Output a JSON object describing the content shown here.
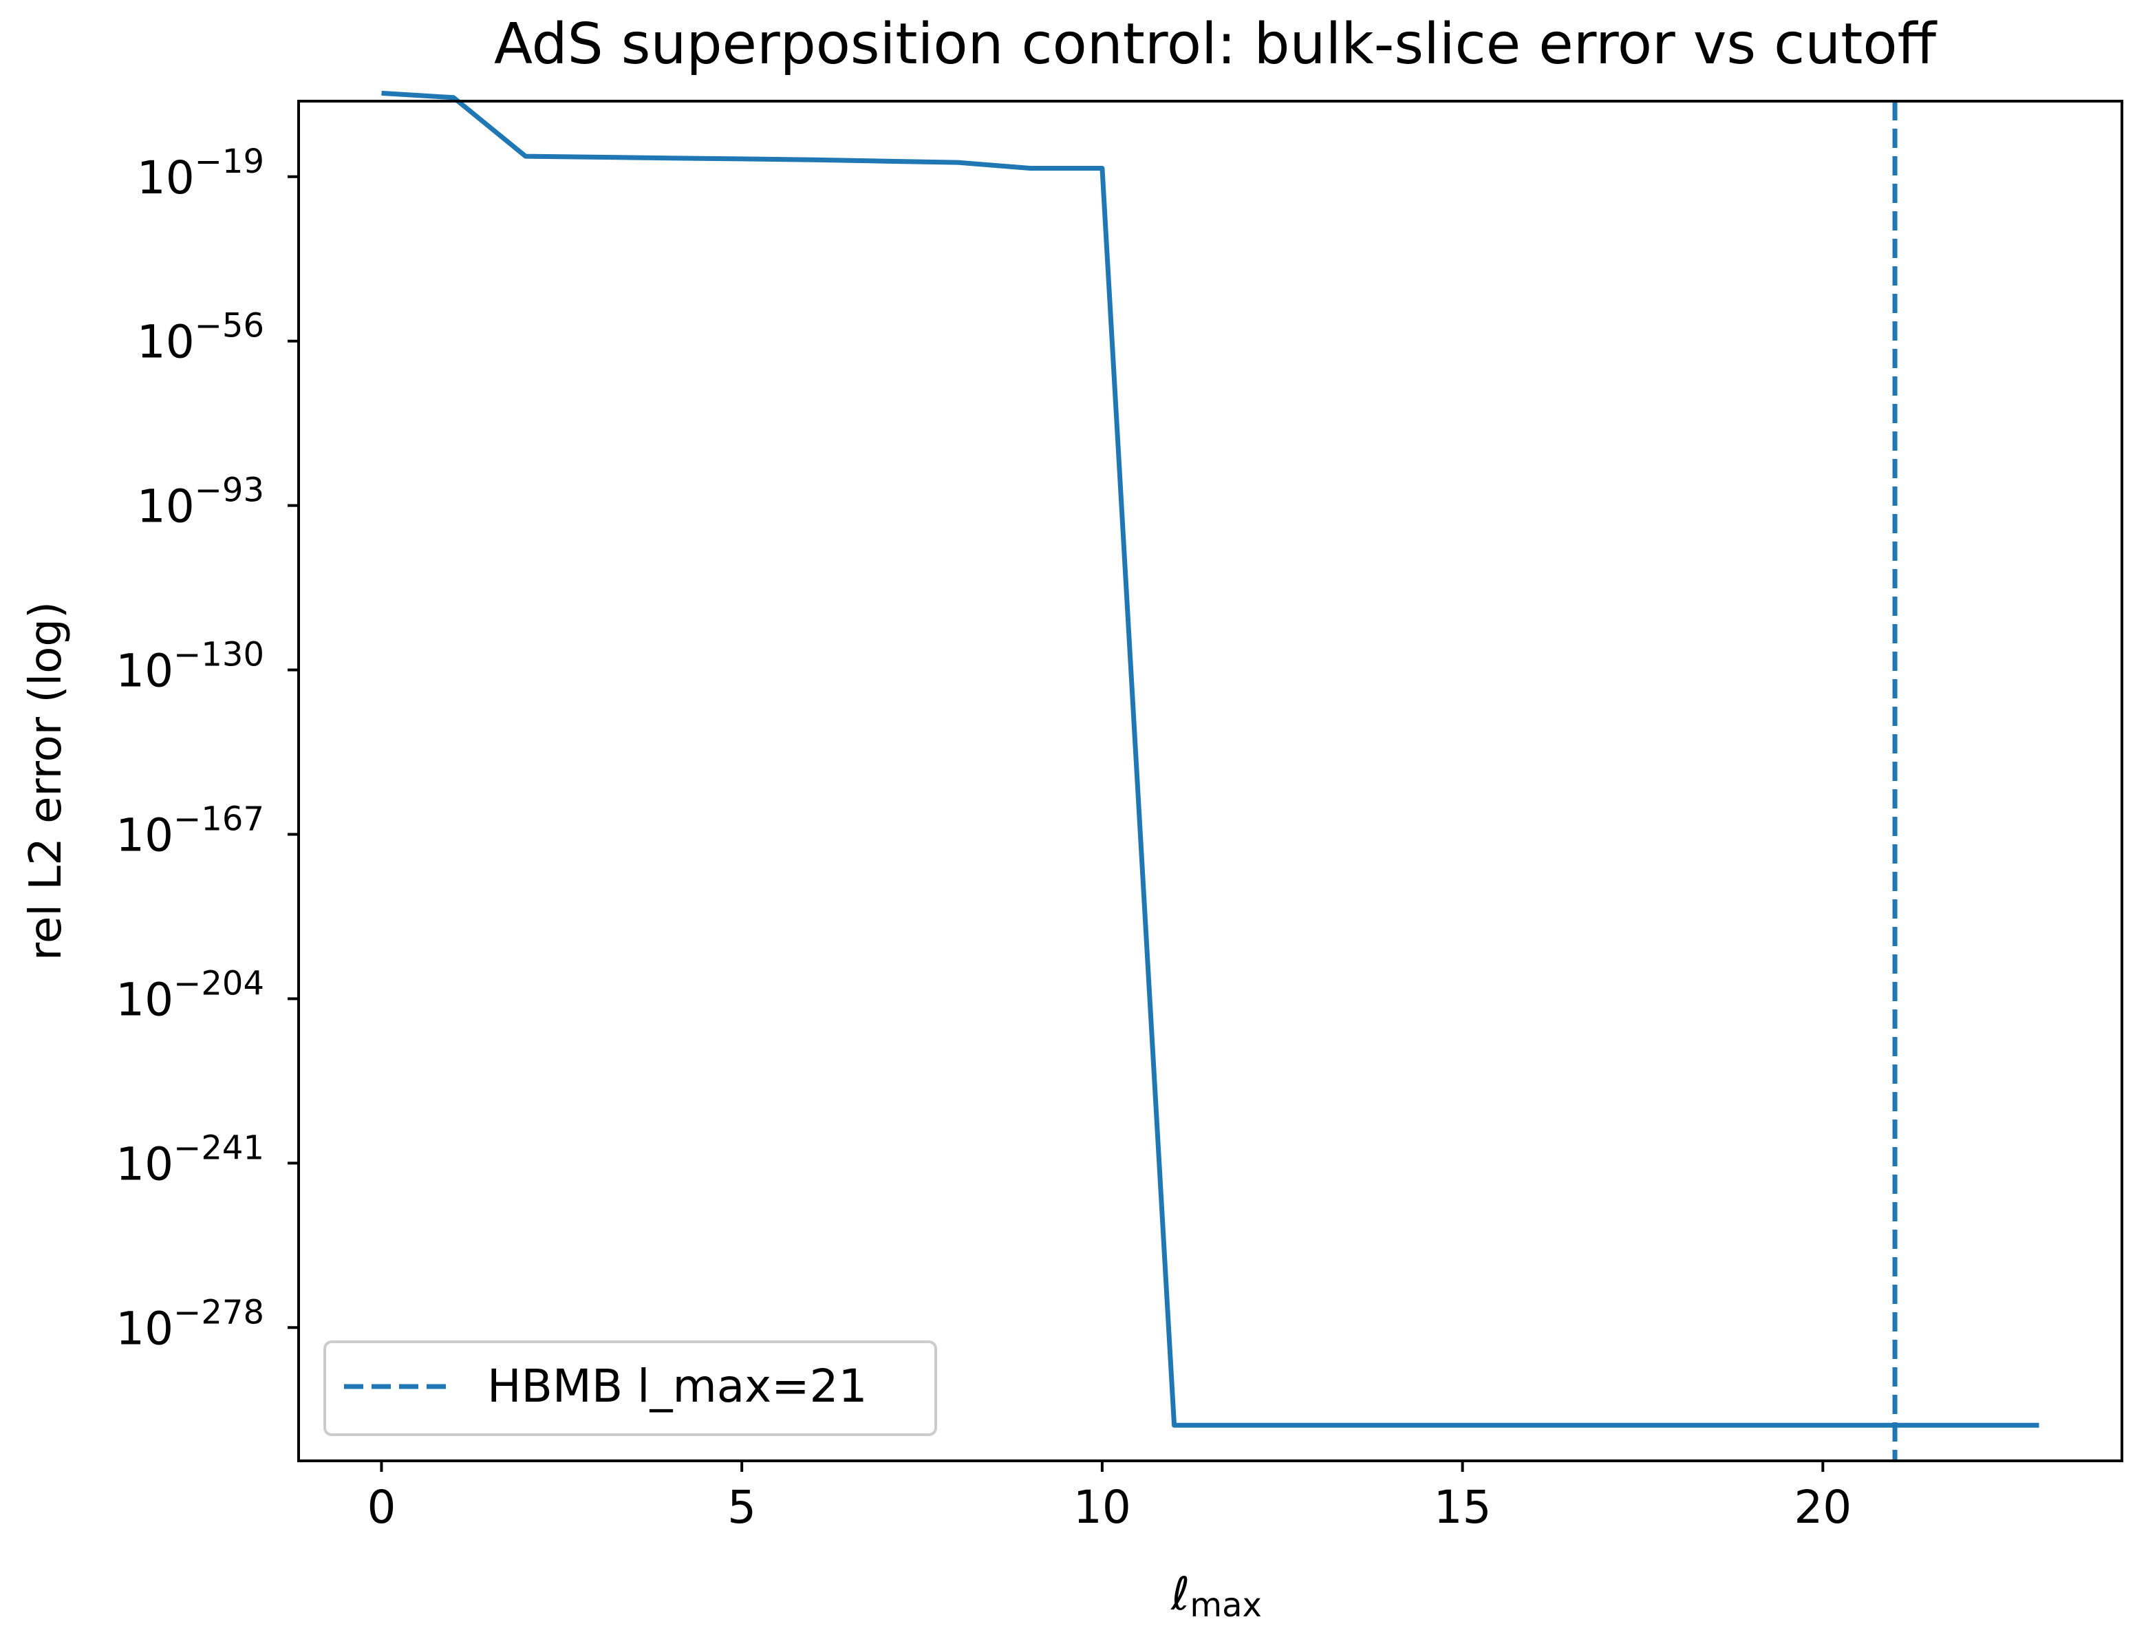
{
  "chart_data": {
    "type": "line",
    "title": "AdS superposition control: bulk-slice error vs cutoff",
    "xlabel": "ℓ",
    "xlabel_sub": "max",
    "ylabel": "rel L2 error (log)",
    "y_scale": "log",
    "x_range": [
      -1.15,
      24.15
    ],
    "y_exponent_range": [
      -308,
      -2
    ],
    "x_ticks": [
      0,
      5,
      10,
      15,
      20
    ],
    "y_ticks": [
      {
        "base": "10",
        "exp": "−19",
        "value": -19
      },
      {
        "base": "10",
        "exp": "−56",
        "value": -56
      },
      {
        "base": "10",
        "exp": "−93",
        "value": -93
      },
      {
        "base": "10",
        "exp": "−130",
        "value": -130
      },
      {
        "base": "10",
        "exp": "−167",
        "value": -167
      },
      {
        "base": "10",
        "exp": "−204",
        "value": -204
      },
      {
        "base": "10",
        "exp": "−241",
        "value": -241
      },
      {
        "base": "10",
        "exp": "−278",
        "value": -278
      }
    ],
    "series": [
      {
        "name": "",
        "color": "#1f77b4",
        "x": [
          0,
          1,
          2,
          3,
          4,
          5,
          6,
          7,
          8,
          9,
          10,
          11,
          12,
          13,
          14,
          15,
          16,
          17,
          18,
          19,
          20,
          21,
          22,
          23
        ],
        "log10_y": [
          -0.2,
          -1.2,
          -14.4,
          -14.6,
          -14.8,
          -15.0,
          -15.2,
          -15.5,
          -15.8,
          -17.1,
          -17.1,
          -300,
          -300,
          -300,
          -300,
          -300,
          -300,
          -300,
          -300,
          -300,
          -300,
          -300,
          -300,
          -300
        ]
      }
    ],
    "vlines": [
      {
        "x": 21,
        "style": "dashed",
        "color": "#1f77b4",
        "label": "HBMB l_max=21"
      }
    ],
    "legend": {
      "position": "lower-left",
      "entries": [
        "HBMB l_max=21"
      ]
    },
    "grid": false
  }
}
